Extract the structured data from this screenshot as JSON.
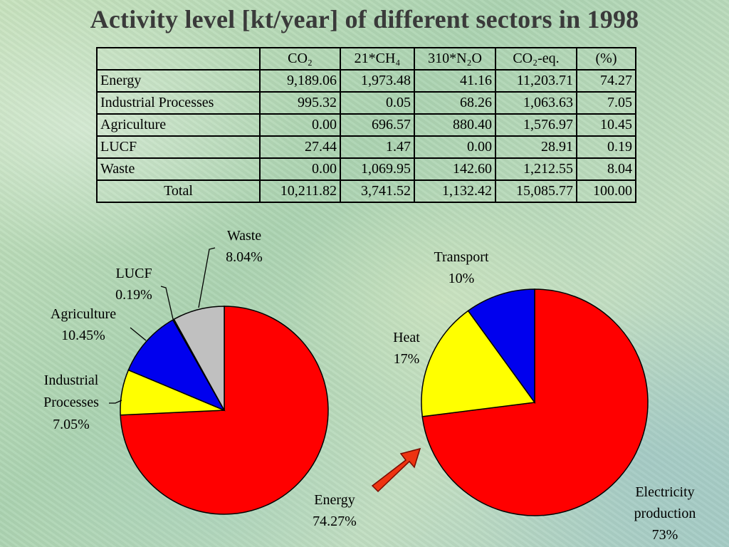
{
  "slide": {
    "title": "Activity level [kt/year] of different sectors in 1998"
  },
  "table": {
    "headers": [
      "",
      "CO₂",
      "21*CH₄",
      "310*N₂O",
      "CO₂-eq.",
      "(%)"
    ],
    "rows": [
      [
        "Energy",
        "9,189.06",
        "1,973.48",
        "41.16",
        "11,203.71",
        "74.27"
      ],
      [
        "Industrial Processes",
        "995.32",
        "0.05",
        "68.26",
        "1,063.63",
        "7.05"
      ],
      [
        "Agriculture",
        "0.00",
        "696.57",
        "880.40",
        "1,576.97",
        "10.45"
      ],
      [
        "LUCF",
        "27.44",
        "1.47",
        "0.00",
        "28.91",
        "0.19"
      ],
      [
        "Waste",
        "0.00",
        "1,069.95",
        "142.60",
        "1,212.55",
        "8.04"
      ],
      [
        "Total",
        "10,211.82",
        "3,741.52",
        "1,132.42",
        "15,085.77",
        "100.00"
      ]
    ]
  },
  "colors": {
    "red": "#ff0000",
    "yellow": "#ffff00",
    "blue": "#0000ee",
    "green": "#00aa00",
    "gray": "#c0c0c0",
    "arrow": "#ee3311",
    "title": "#3a3a3a"
  },
  "arrow_icon": "arrow-up-right-icon",
  "chart_data": [
    {
      "type": "pie",
      "slices": [
        {
          "name": "Energy",
          "value": 74.27,
          "label_lines": [
            "Energy",
            "74.27%"
          ],
          "color": "#ff0000"
        },
        {
          "name": "Industrial Processes",
          "value": 7.05,
          "label_lines": [
            "Industrial",
            "Processes",
            "7.05%"
          ],
          "color": "#ffff00"
        },
        {
          "name": "Agriculture",
          "value": 10.45,
          "label_lines": [
            "Agriculture",
            "10.45%"
          ],
          "color": "#0000ee"
        },
        {
          "name": "LUCF",
          "value": 0.19,
          "label_lines": [
            "LUCF",
            "0.19%"
          ],
          "color": "#00aa00"
        },
        {
          "name": "Waste",
          "value": 8.04,
          "label_lines": [
            "Waste",
            "8.04%"
          ],
          "color": "#c0c0c0"
        }
      ],
      "start": "12 o'clock",
      "direction": "clockwise"
    },
    {
      "type": "pie",
      "slices": [
        {
          "name": "Electricity production",
          "value": 73,
          "label_lines": [
            "Electricity",
            "production",
            "73%"
          ],
          "color": "#ff0000"
        },
        {
          "name": "Heat",
          "value": 17,
          "label_lines": [
            "Heat",
            "17%"
          ],
          "color": "#ffff00"
        },
        {
          "name": "Transport",
          "value": 10,
          "label_lines": [
            "Transport",
            "10%"
          ],
          "color": "#0000ee"
        }
      ],
      "start": "12 o'clock",
      "direction": "clockwise"
    }
  ]
}
